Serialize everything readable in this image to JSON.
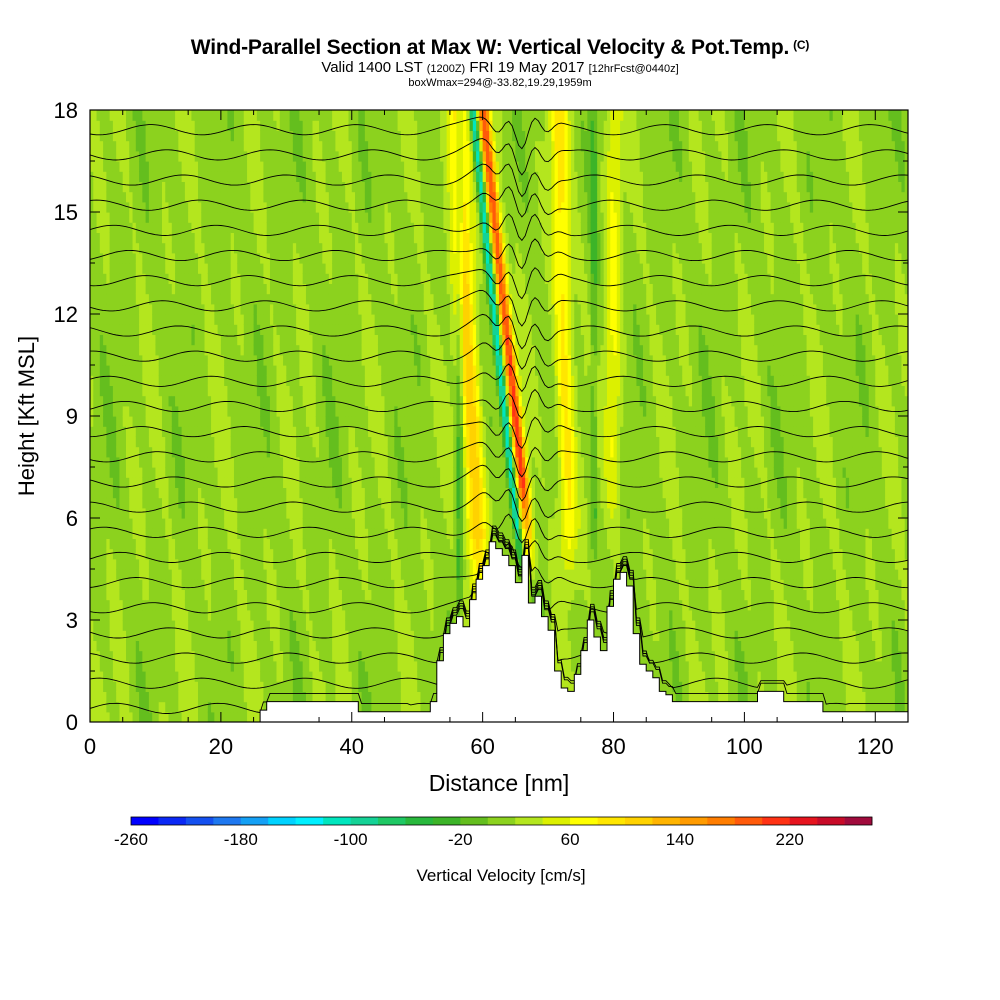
{
  "chart_data": {
    "type": "heatmap",
    "title": "Wind-Parallel Section at Max W: Vertical Velocity & Pot.Temp.",
    "title_mark": "(C)",
    "subtitle": {
      "valid": "Valid 1400 LST",
      "utc": "(1200Z)",
      "date": "FRI 19 May 2017",
      "forecast": "[12hrFcst@0440z]"
    },
    "box_info": "boxWmax=294@-33.82,19.29,1959m",
    "xlabel": "Distance [nm]",
    "ylabel": "Height [Kft MSL]",
    "xlim": [
      0,
      125
    ],
    "ylim": [
      0,
      18
    ],
    "x_ticks": [
      0,
      20,
      40,
      60,
      80,
      100,
      120
    ],
    "y_ticks": [
      0,
      3,
      6,
      9,
      12,
      15,
      18
    ],
    "colorbar": {
      "label": "Vertical Velocity [cm/s]",
      "levels": [
        -260,
        -240,
        -220,
        -200,
        -180,
        -160,
        -140,
        -120,
        -100,
        -80,
        -60,
        -40,
        -20,
        0,
        20,
        40,
        60,
        80,
        100,
        120,
        140,
        160,
        180,
        200,
        220,
        240,
        260,
        280
      ],
      "tick_labels": [
        -260,
        -180,
        -100,
        -20,
        60,
        140,
        220
      ],
      "colors": [
        "#0000ff",
        "#0a28f5",
        "#1450f0",
        "#1e78f0",
        "#14a0f5",
        "#00d2ff",
        "#00f0ff",
        "#00e6be",
        "#14d296",
        "#1ec864",
        "#28b83c",
        "#3cb428",
        "#64be1e",
        "#8cd21e",
        "#b4e61e",
        "#dcf000",
        "#ffff00",
        "#ffe600",
        "#ffd200",
        "#ffb400",
        "#ff9b00",
        "#ff7d00",
        "#ff5a0a",
        "#ff3214",
        "#e6141e",
        "#c80a28",
        "#a00a3c"
      ]
    },
    "terrain_profile": {
      "x": [
        0,
        25,
        26,
        27,
        28,
        29,
        30,
        31,
        32,
        33,
        34,
        35,
        36,
        37,
        38,
        39,
        40,
        41,
        42,
        43,
        44,
        45,
        46,
        47,
        48,
        49,
        50,
        51,
        52,
        53,
        54,
        55,
        56,
        57,
        58,
        59,
        60,
        61,
        62,
        63,
        64,
        65,
        66,
        67,
        68,
        69,
        70,
        71,
        72,
        73,
        74,
        75,
        76,
        77,
        78,
        79,
        80,
        81,
        82,
        83,
        84,
        85,
        86,
        87,
        88,
        89,
        90,
        91,
        92,
        93,
        94,
        95,
        96,
        97,
        98,
        99,
        100,
        101,
        102,
        103,
        104,
        105,
        106,
        107,
        108,
        109,
        110,
        111,
        112,
        125
      ],
      "height": [
        0,
        0,
        0.35,
        0.6,
        0.6,
        0.6,
        0.6,
        0.6,
        0.6,
        0.6,
        0.6,
        0.6,
        0.6,
        0.6,
        0.6,
        0.6,
        0.6,
        0.3,
        0.3,
        0.3,
        0.3,
        0.3,
        0.3,
        0.3,
        0.3,
        0.3,
        0.3,
        0.3,
        0.6,
        1.8,
        2.6,
        2.9,
        3.1,
        2.8,
        3.6,
        4.2,
        4.6,
        5.3,
        5.1,
        4.9,
        4.6,
        4.1,
        4.9,
        3.5,
        3.7,
        3.1,
        2.7,
        1.5,
        1.0,
        0.9,
        1.4,
        2.1,
        3.0,
        2.5,
        2.1,
        3.4,
        4.2,
        4.4,
        4.0,
        2.6,
        1.7,
        1.5,
        1.3,
        0.9,
        0.8,
        0.6,
        0.6,
        0.6,
        0.6,
        0.6,
        0.6,
        0.6,
        0.6,
        0.6,
        0.6,
        0.6,
        0.6,
        0.6,
        0.9,
        0.9,
        0.9,
        0.9,
        0.6,
        0.6,
        0.6,
        0.6,
        0.6,
        0.6,
        0.3,
        0
      ]
    },
    "updraft_peak": {
      "value_cm_s": 294,
      "lat": -33.82,
      "lon": 19.29,
      "height_m": 1959
    }
  }
}
